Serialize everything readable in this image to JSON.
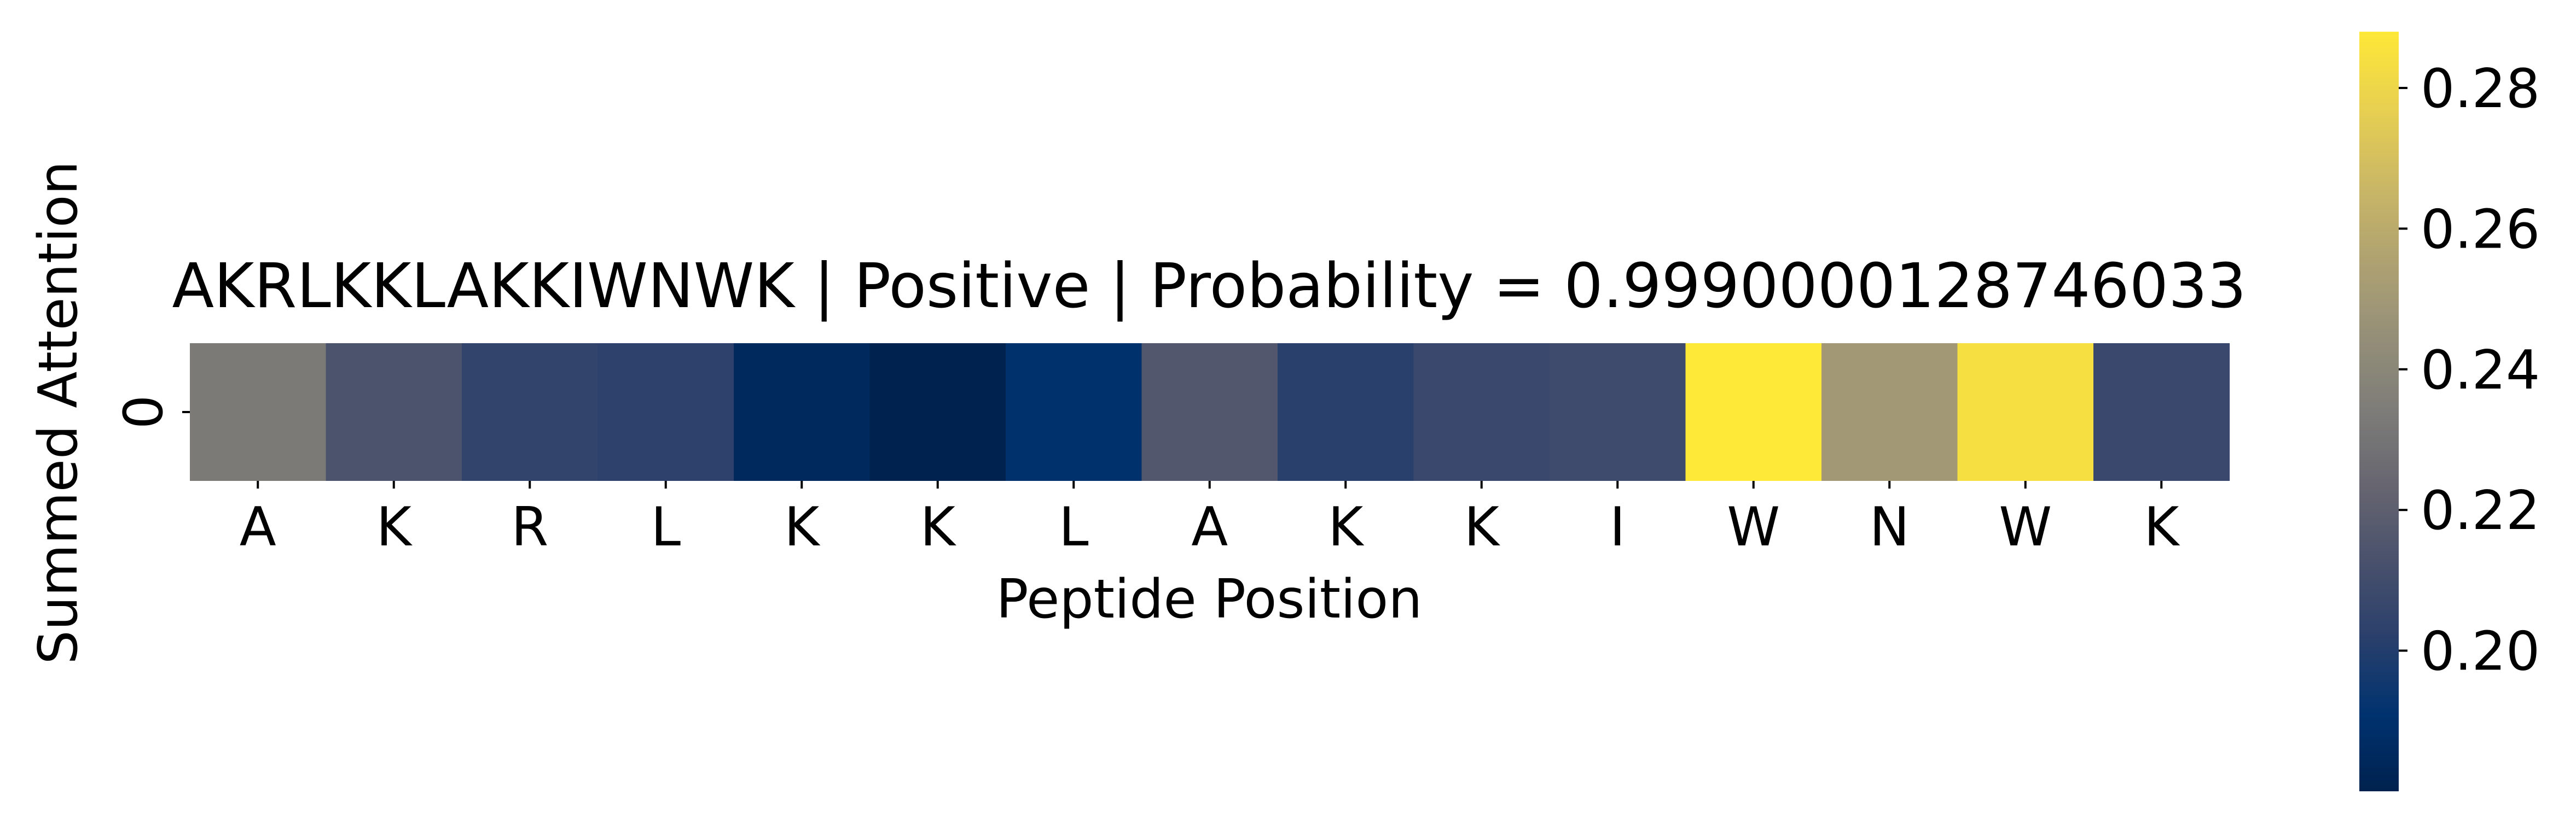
{
  "chart_data": {
    "type": "heatmap",
    "title": "AKRLKKLAKKIWNWK | Positive | Probability = 0.9990000128746033",
    "xlabel": "Peptide Position",
    "ylabel": "Summed Attention",
    "x": [
      "A",
      "K",
      "R",
      "L",
      "K",
      "K",
      "L",
      "A",
      "K",
      "K",
      "I",
      "W",
      "N",
      "W",
      "K"
    ],
    "y": [
      "0"
    ],
    "values": [
      [
        0.233,
        0.214,
        0.205,
        0.203,
        0.185,
        0.18,
        0.19,
        0.216,
        0.202,
        0.207,
        0.209,
        0.288,
        0.25,
        0.284,
        0.207
      ]
    ],
    "colormap": "cividis",
    "colorbar": {
      "range": [
        0.18,
        0.288
      ],
      "ticks": [
        "0.20",
        "0.22",
        "0.24",
        "0.26",
        "0.28"
      ]
    }
  }
}
